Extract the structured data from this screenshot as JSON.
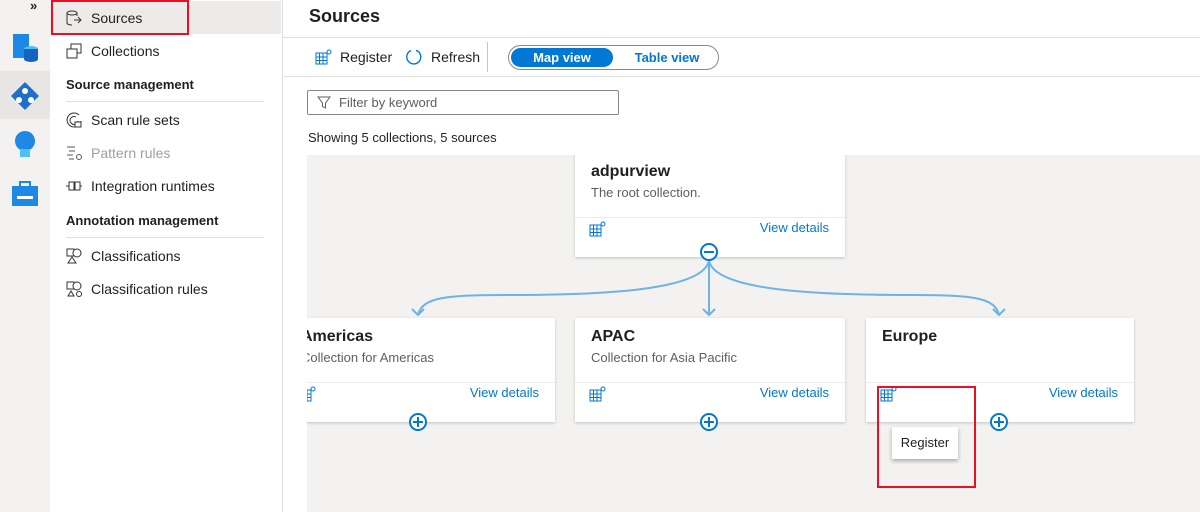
{
  "rail": {
    "expand": "»",
    "icons": [
      "data-map-icon",
      "data-sources-icon",
      "insights-icon",
      "management-icon"
    ]
  },
  "nav": {
    "items": [
      {
        "label": "Sources",
        "icon": "sources-icon",
        "active": true
      },
      {
        "label": "Collections",
        "icon": "collections-icon"
      }
    ],
    "source_management": {
      "heading": "Source management",
      "items": [
        {
          "label": "Scan rule sets",
          "icon": "scan-icon"
        },
        {
          "label": "Pattern rules",
          "icon": "pattern-icon",
          "disabled": true
        },
        {
          "label": "Integration runtimes",
          "icon": "runtime-icon"
        }
      ]
    },
    "annotation_management": {
      "heading": "Annotation management",
      "items": [
        {
          "label": "Classifications",
          "icon": "classification-icon"
        },
        {
          "label": "Classification rules",
          "icon": "classification-rule-icon"
        }
      ]
    }
  },
  "header": {
    "title": "Sources"
  },
  "toolbar": {
    "register": "Register",
    "refresh": "Refresh",
    "map_view": "Map view",
    "table_view": "Table view",
    "selected": "Map view"
  },
  "filter": {
    "placeholder": "Filter by keyword"
  },
  "summary": "Showing 5 collections, 5 sources",
  "collections": {
    "root": {
      "name": "adpurview",
      "description": "The root collection.",
      "view": "View details"
    },
    "children": [
      {
        "name": "Americas",
        "description": "Collection for Americas",
        "view": "View details"
      },
      {
        "name": "APAC",
        "description": "Collection for Asia Pacific",
        "view": "View details"
      },
      {
        "name": "Europe",
        "description": "",
        "view": "View details"
      }
    ]
  },
  "tooltip": "Register",
  "colors": {
    "accent": "#0078d4",
    "connector": "#6cb3e6",
    "highlight": "#e81123"
  }
}
